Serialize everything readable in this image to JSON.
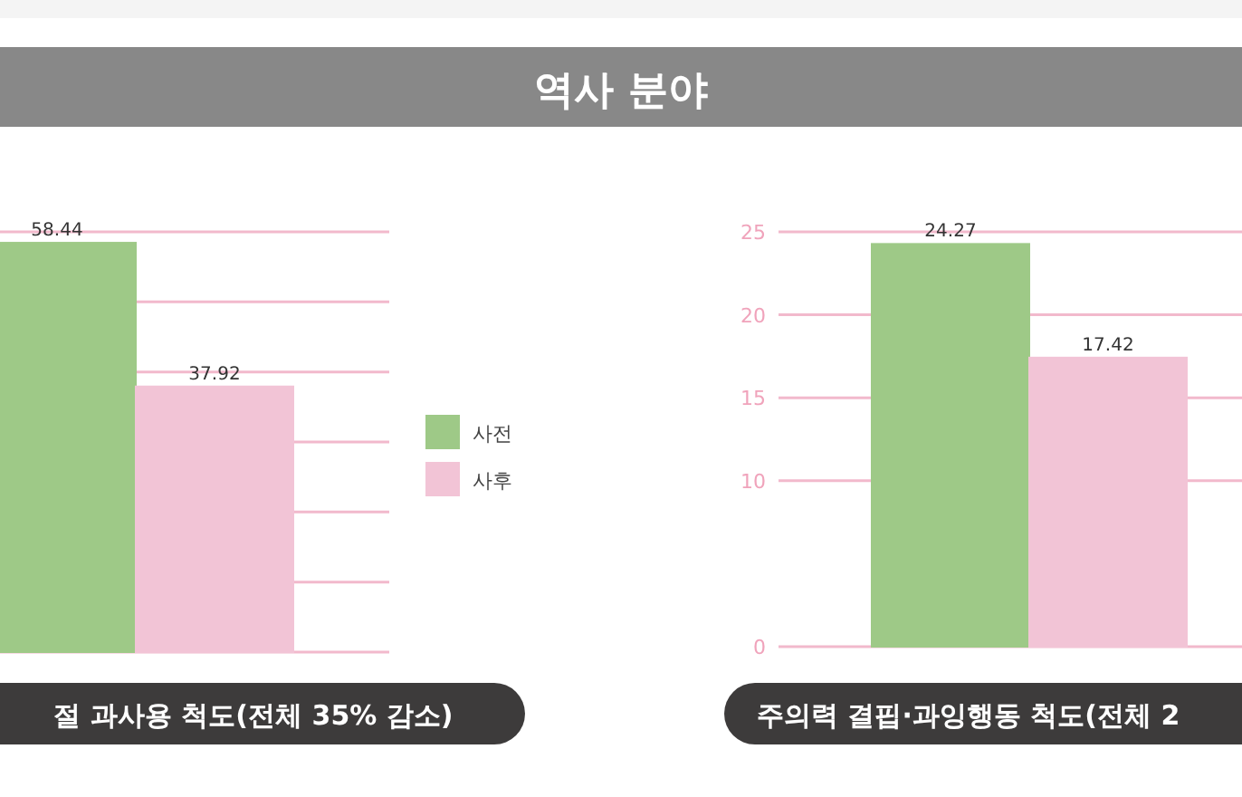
{
  "chart_data": [
    {
      "type": "other",
      "title": "역사 분야"
    },
    {
      "type": "bar",
      "xlabel": "절 과사용 척도(전체 35% 감소)",
      "categories": [
        null
      ],
      "series": [
        {
          "name": "사전",
          "color": "#9ec987",
          "values": [
            58.44
          ]
        },
        {
          "name": "사후",
          "color": "#f2c4d6",
          "values": [
            37.92
          ]
        }
      ],
      "ylim": [
        0,
        60
      ],
      "yticks": [
        {
          "value": 0,
          "label": null
        },
        {
          "value": 10,
          "label": null
        },
        {
          "value": 20,
          "label": null
        },
        {
          "value": 30,
          "label": null
        },
        {
          "value": 40,
          "label": null
        },
        {
          "value": 50,
          "label": null
        },
        {
          "value": 60,
          "label": null
        }
      ],
      "tick_labels": false,
      "grid": "y",
      "data_labels": true,
      "legend": "right"
    },
    {
      "type": "bar",
      "xlabel": "주의력 결핍·과잉행동 척도(전체 2",
      "categories": [
        null
      ],
      "series": [
        {
          "color": "#9ec987",
          "values": [
            24.27
          ]
        },
        {
          "color": "#f2c4d6",
          "values": [
            17.42
          ]
        }
      ],
      "ylim": [
        0,
        25
      ],
      "yticks": [
        0,
        10,
        15,
        20,
        25
      ],
      "tick_labels": "y",
      "grid": "y",
      "data_labels": true
    }
  ]
}
